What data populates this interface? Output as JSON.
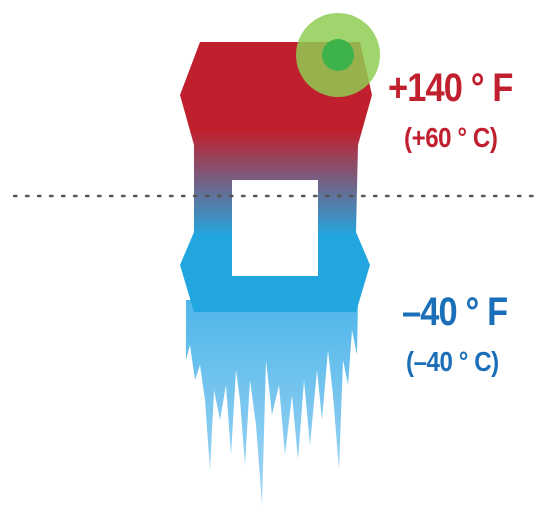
{
  "hot_temp": {
    "fahrenheit": "+140 ° F",
    "celsius": "(+60 ° C)"
  },
  "cold_temp": {
    "fahrenheit": "–40 ° F",
    "celsius": "(–40 ° C)"
  },
  "colors": {
    "hot": "#c0202e",
    "cold": "#22a6e0",
    "ice": "#8fcbee",
    "indicator_outer": "#8fcc52",
    "indicator_inner": "#3db24a",
    "divider": "#555555"
  }
}
